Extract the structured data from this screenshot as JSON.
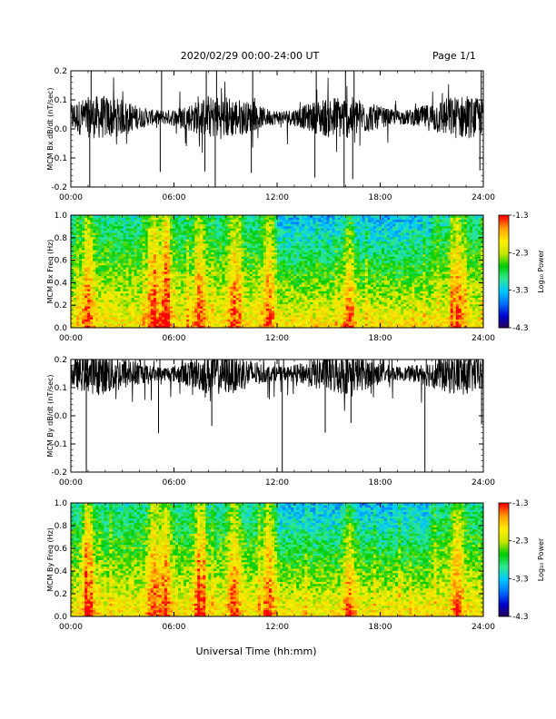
{
  "header": {
    "date_range": "2020/02/29  00:00-24:00 UT",
    "page": "Page 1/1"
  },
  "xlabel": "Universal Time (hh:mm)",
  "x_ticks": [
    "00:00",
    "06:00",
    "12:00",
    "18:00",
    "24:00"
  ],
  "colors": {
    "trace": "#000000",
    "colormap": [
      "#2a004f",
      "#0000cc",
      "#0070ff",
      "#00c8ff",
      "#30e890",
      "#00cc00",
      "#c8e600",
      "#ffee00",
      "#ffa000",
      "#ff0000"
    ]
  },
  "chart_data": [
    {
      "type": "line",
      "ylabel": "MCM Bx dB/dt (nT/sec)",
      "ylim": [
        -0.2,
        0.2
      ],
      "y_ticks": [
        "0.2",
        "0.1",
        "0.0",
        "-0.1",
        "-0.2"
      ],
      "x_range_hours": [
        0,
        24
      ],
      "baseline": 0.04,
      "noise_amplitude": 0.05,
      "spikes_hours": [
        1.1,
        5.2,
        7.8,
        8.4,
        10.5,
        14.2,
        15.9,
        16.4,
        23.8
      ],
      "spike_min": -0.2,
      "spike_max": 0.2
    },
    {
      "type": "heatmap",
      "ylabel": "MCM Bx Freq (Hz)",
      "ylim": [
        0.0,
        1.0
      ],
      "y_ticks": [
        "1.0",
        "0.8",
        "0.6",
        "0.4",
        "0.2",
        "0.0"
      ],
      "x_range_hours": [
        0,
        24
      ],
      "colorbar": {
        "label": "Log₁₀ Power",
        "ticks": [
          "-1.3",
          "-2.3",
          "-3.3",
          "-4.3"
        ],
        "range": [
          -4.3,
          -1.3
        ]
      },
      "bright_hours": [
        1.0,
        4.8,
        5.5,
        7.5,
        9.5,
        11.5,
        16.2,
        22.5
      ]
    },
    {
      "type": "line",
      "ylabel": "MCM By dB/dt (nT/sec)",
      "ylim": [
        -0.2,
        0.2
      ],
      "y_ticks": [
        "0.2",
        "0.1",
        "0.0",
        "-0.1",
        "-0.2"
      ],
      "x_range_hours": [
        0,
        24
      ],
      "baseline": 0.15,
      "noise_amplitude": 0.05,
      "spikes_hours": [
        0.9,
        5.1,
        8.2,
        12.3,
        14.8,
        16.3,
        20.6,
        23.9
      ],
      "spike_min": -0.2,
      "spike_max": 0.2
    },
    {
      "type": "heatmap",
      "ylabel": "MCM By Freq (Hz)",
      "ylim": [
        0.0,
        1.0
      ],
      "y_ticks": [
        "1.0",
        "0.8",
        "0.6",
        "0.4",
        "0.2",
        "0.0"
      ],
      "x_range_hours": [
        0,
        24
      ],
      "colorbar": {
        "label": "Log₁₀ Power",
        "ticks": [
          "-1.3",
          "-2.3",
          "-3.3",
          "-4.3"
        ],
        "range": [
          -4.3,
          -1.3
        ]
      },
      "bright_hours": [
        1.0,
        4.8,
        5.5,
        7.5,
        9.5,
        11.5,
        16.2,
        22.5
      ]
    }
  ]
}
